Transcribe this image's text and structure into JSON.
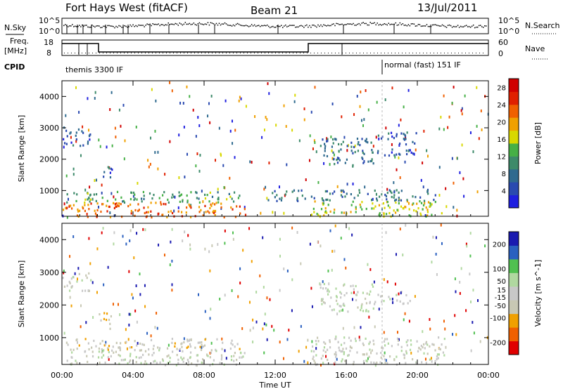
{
  "header": {
    "radar": "Fort Hays West (fitACF)",
    "beam": "Beam 21",
    "date": "13/Jul/2011"
  },
  "top_panel": {
    "nsky_label": "N.Sky",
    "nsky_ticks": [
      "10^5",
      "10^0"
    ],
    "nsearch_label": "N.Search",
    "nsearch_ticks": [
      "10^5",
      "10^0"
    ],
    "freq_label": "Freq.",
    "freq_unit": "[MHz]",
    "freq_ticks": [
      "18",
      "8"
    ],
    "nave_label": "Nave",
    "nave_ticks": [
      "60",
      "0"
    ],
    "cpid_label": "CPID",
    "cpid_modes": [
      "themis 3300 IF",
      "normal (fast) 151 IF"
    ]
  },
  "colors": {
    "power": [
      "#1f1fe0",
      "#2a4ab0",
      "#2f6a8f",
      "#3d8a6a",
      "#46b046",
      "#d8d800",
      "#f0a000",
      "#f06000",
      "#e02000",
      "#d00000"
    ],
    "velocity": [
      "#e00000",
      "#f06000",
      "#f0a000",
      "#c8c8b4",
      "#c8c8c8",
      "#b0d8a0",
      "#50c050",
      "#2a60c0",
      "#1a1ab0"
    ]
  },
  "chart_data": [
    {
      "type": "heatmap",
      "title": "",
      "xlabel": "",
      "ylabel": "Slant Range [km]",
      "xlim_hours": [
        0,
        24
      ],
      "x_ticks": [
        "00:00",
        "04:00",
        "08:00",
        "12:00",
        "16:00",
        "20:00",
        "00:00"
      ],
      "ylim": [
        180,
        4500
      ],
      "y_ticks": [
        1000,
        2000,
        3000,
        4000
      ],
      "colorbar": {
        "label": "Power [dB]",
        "ticks": [
          4,
          8,
          12,
          16,
          20,
          24,
          28
        ],
        "range": [
          0,
          30
        ]
      },
      "regions": [
        {
          "t": [
            0.0,
            10.3
          ],
          "r": [
            180,
            650
          ],
          "value": 22
        },
        {
          "t": [
            0.2,
            10.0
          ],
          "r": [
            650,
            1000
          ],
          "value": 12
        },
        {
          "t": [
            0.0,
            1.6
          ],
          "r": [
            2450,
            3050
          ],
          "value": 6
        },
        {
          "t": [
            14.0,
            21.5
          ],
          "r": [
            200,
            700
          ],
          "value": 16
        },
        {
          "t": [
            11.5,
            21.0
          ],
          "r": [
            700,
            1050
          ],
          "value": 8
        },
        {
          "t": [
            14.5,
            17.5
          ],
          "r": [
            1800,
            2700
          ],
          "value": 8
        },
        {
          "t": [
            17.5,
            19.8
          ],
          "r": [
            2050,
            2350
          ],
          "value": 6
        },
        {
          "t": [
            2.0,
            2.8
          ],
          "r": [
            1400,
            1800
          ],
          "value": 6
        },
        {
          "t": [
            17.7,
            20.0
          ],
          "r": [
            2500,
            2900
          ],
          "value": 6
        }
      ]
    },
    {
      "type": "heatmap",
      "title": "",
      "xlabel": "Time UT",
      "ylabel": "Slant Range [km]",
      "xlim_hours": [
        0,
        24
      ],
      "x_ticks": [
        "00:00",
        "04:00",
        "08:00",
        "12:00",
        "16:00",
        "20:00",
        "00:00"
      ],
      "ylim": [
        180,
        4500
      ],
      "y_ticks": [
        1000,
        2000,
        3000,
        4000
      ],
      "colorbar": {
        "label": "Velocity [m s^-1]",
        "ticks": [
          200,
          100,
          50,
          15,
          -15,
          -50,
          -100,
          -200
        ],
        "range": [
          -250,
          250
        ]
      },
      "regions": [
        {
          "t": [
            0.0,
            10.3
          ],
          "r": [
            180,
            650
          ],
          "value": 0
        },
        {
          "t": [
            0.2,
            10.0
          ],
          "r": [
            650,
            1000
          ],
          "value": -40
        },
        {
          "t": [
            0.0,
            1.6
          ],
          "r": [
            2450,
            3050
          ],
          "value": 0
        },
        {
          "t": [
            14.0,
            21.5
          ],
          "r": [
            200,
            1050
          ],
          "value": 0
        },
        {
          "t": [
            14.5,
            17.5
          ],
          "r": [
            1800,
            2700
          ],
          "value": 20
        },
        {
          "t": [
            17.5,
            19.8
          ],
          "r": [
            2050,
            2350
          ],
          "value": 0
        },
        {
          "t": [
            2.0,
            2.8
          ],
          "r": [
            1300,
            1800
          ],
          "value": -80
        }
      ]
    }
  ]
}
